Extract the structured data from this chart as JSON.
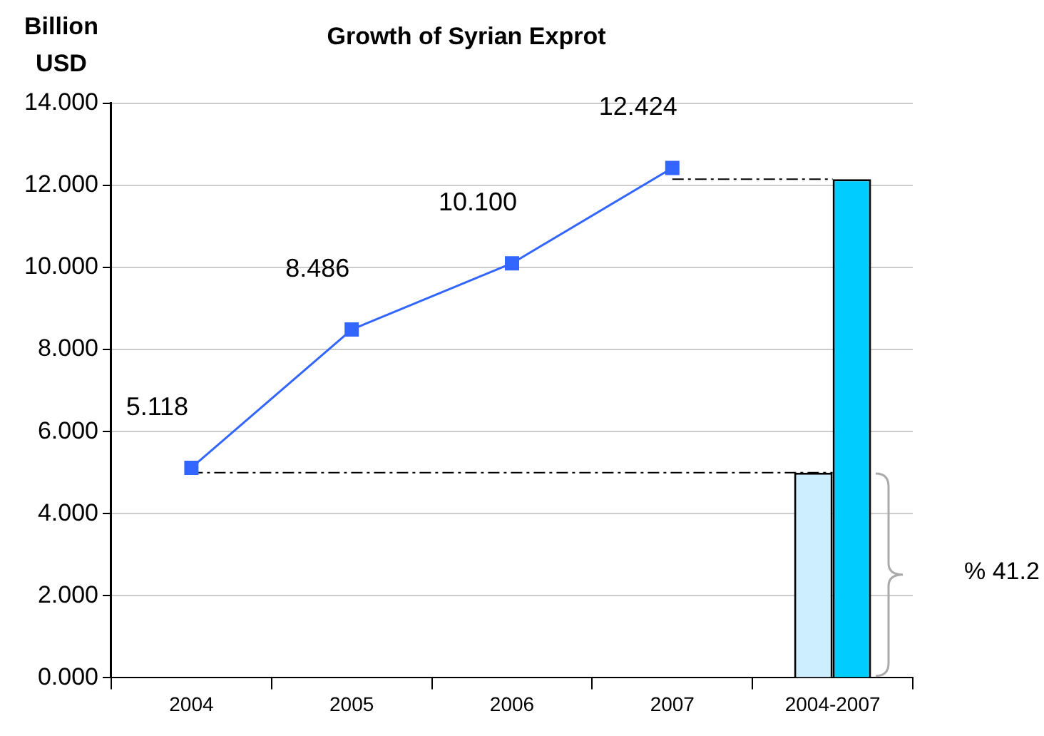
{
  "chart_data": {
    "type": "line",
    "title": "Growth of Syrian Exprot",
    "ylabel": "Billion USD",
    "categories": [
      "2004",
      "2005",
      "2006",
      "2007",
      "2004-2007"
    ],
    "series": [
      {
        "color": "#3366ff",
        "marker": "square",
        "values": [
          5.118,
          8.486,
          10.1,
          12.424,
          null
        ],
        "value_labels": [
          "5.118",
          "8.486",
          "10.100",
          "12.424",
          null
        ]
      },
      {
        "type": "line",
        "color": "#000000",
        "marker": "none",
        "line_style": "dashed",
        "values": [
          5.0,
          5.0,
          5.0,
          5.0,
          5.0
        ]
      },
      {
        "type": "line",
        "color": "#000000",
        "marker": "none",
        "line_style": "dashed",
        "values": [
          null,
          null,
          null,
          12.15,
          12.15
        ]
      },
      {
        "type": "bar",
        "color": "#cceeff",
        "values": [
          null,
          null,
          null,
          null,
          5.0
        ]
      },
      {
        "type": "bar",
        "color": "#00ccff",
        "values": [
          null,
          null,
          null,
          null,
          12.15
        ]
      }
    ],
    "ylim": [
      0,
      14
    ],
    "yticks": [
      {
        "value": 0,
        "label": "0.000"
      },
      {
        "value": 2,
        "label": "2.000"
      },
      {
        "value": 4,
        "label": "4.000"
      },
      {
        "value": 6,
        "label": "6.000"
      },
      {
        "value": 8,
        "label": "8.000"
      },
      {
        "value": 10,
        "label": "10.000"
      },
      {
        "value": 12,
        "label": "12.000"
      },
      {
        "value": 14,
        "label": "14.000"
      }
    ],
    "grid": "y",
    "annotations": [
      "% 41.2"
    ]
  }
}
